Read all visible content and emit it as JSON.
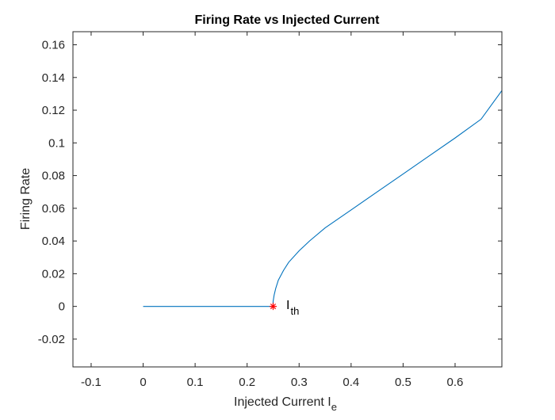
{
  "chart_data": {
    "type": "line",
    "title": "Firing Rate vs Injected Current",
    "xlabel": "Injected Current I",
    "xlabel_subscript": "e",
    "ylabel": "Firing Rate",
    "xlim": [
      -0.135,
      0.69
    ],
    "ylim": [
      -0.037,
      0.168
    ],
    "xticks": [
      -0.1,
      0,
      0.1,
      0.2,
      0.3,
      0.4,
      0.5,
      0.6
    ],
    "xtick_labels": [
      "-0.1",
      "0",
      "0.1",
      "0.2",
      "0.3",
      "0.4",
      "0.5",
      "0.6"
    ],
    "yticks": [
      -0.02,
      0,
      0.02,
      0.04,
      0.06,
      0.08,
      0.1,
      0.12,
      0.14,
      0.16
    ],
    "ytick_labels": [
      "-0.02",
      "0",
      "0.02",
      "0.04",
      "0.06",
      "0.08",
      "0.1",
      "0.12",
      "0.14",
      "0.16"
    ],
    "grid": false,
    "series": [
      {
        "color": "#0072BD",
        "x": [
          0,
          0.1,
          0.2,
          0.25,
          0.25,
          0.252,
          0.255,
          0.26,
          0.27,
          0.28,
          0.3,
          0.32,
          0.35,
          0.4,
          0.45,
          0.5,
          0.55,
          0.6,
          0.65,
          0.69
        ],
        "y": [
          0,
          0,
          0,
          0,
          0.003,
          0.007,
          0.011,
          0.016,
          0.022,
          0.027,
          0.034,
          0.04,
          0.048,
          0.059,
          0.07,
          0.081,
          0.092,
          0.103,
          0.1145,
          0.132
        ]
      }
    ],
    "marker": {
      "x": 0.25,
      "y": 0,
      "symbol": "*",
      "color": "#FF0000"
    },
    "annotation": {
      "text": "I",
      "subscript": "th"
    }
  }
}
